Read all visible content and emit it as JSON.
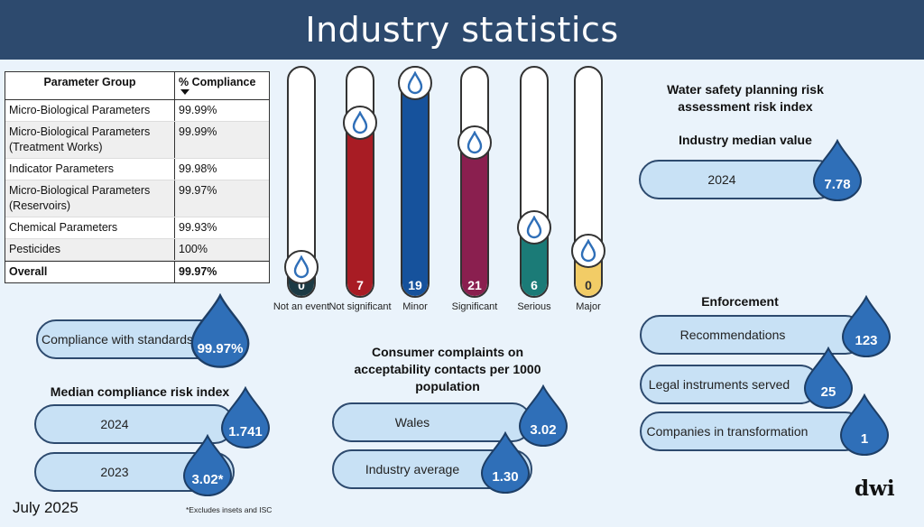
{
  "page": {
    "title": "Industry statistics",
    "date": "July 2025",
    "footnote": "*Excludes insets and ISC",
    "logo": "dwi"
  },
  "compliance_table": {
    "headers": [
      "Parameter Group",
      "% Compliance"
    ],
    "sorted_column": "% Compliance",
    "rows": [
      {
        "group": "Micro-Biological Parameters",
        "value": "99.99%"
      },
      {
        "group": "Micro-Biological Parameters (Treatment Works)",
        "value": "99.99%"
      },
      {
        "group": "Indicator Parameters",
        "value": "99.98%"
      },
      {
        "group": "Micro-Biological Parameters (Reservoirs)",
        "value": "99.97%"
      },
      {
        "group": "Chemical Parameters",
        "value": "99.93%"
      },
      {
        "group": "Pesticides",
        "value": "100%"
      }
    ],
    "overall": {
      "group": "Overall",
      "value": "99.97%"
    }
  },
  "event_gauges": [
    {
      "label": "Not an event",
      "value": "0",
      "level": 0.0,
      "color": "#1c3a44"
    },
    {
      "label": "Not significant",
      "value": "7",
      "level": 0.73,
      "color": "#a81c24"
    },
    {
      "label": "Minor",
      "value": "19",
      "level": 0.96,
      "color": "#16529c"
    },
    {
      "label": "Significant",
      "value": "21",
      "level": 0.63,
      "color": "#8a1f4f"
    },
    {
      "label": "Serious",
      "value": "6",
      "level": 0.2,
      "color": "#1b7b77"
    },
    {
      "label": "Major",
      "value": "0",
      "level": 0.08,
      "color": "#f2cc66"
    }
  ],
  "compliance_standards": {
    "label": "Compliance with standards",
    "value": "99.97%"
  },
  "median_compliance": {
    "heading": "Median compliance risk index",
    "items": [
      {
        "year": "2024",
        "value": "1.741"
      },
      {
        "year": "2023",
        "value": "3.02*"
      }
    ]
  },
  "complaints": {
    "heading": "Consumer complaints on acceptability contacts per 1000 population",
    "items": [
      {
        "label": "Wales",
        "value": "3.02"
      },
      {
        "label": "Industry average",
        "value": "1.30"
      }
    ]
  },
  "water_safety": {
    "heading": "Water safety planning risk assessment risk index",
    "subheading": "Industry median value",
    "year": "2024",
    "value": "7.78"
  },
  "enforcement": {
    "heading": "Enforcement",
    "items": [
      {
        "label": "Recommendations",
        "value": "123"
      },
      {
        "label": "Legal instruments served",
        "value": "25"
      },
      {
        "label": "Companies in transformation",
        "value": "1"
      }
    ]
  },
  "colors": {
    "header": "#2d4a6e",
    "background": "#eaf3fb",
    "pill": "#c8e1f5",
    "drop": "#2f6fb8"
  }
}
